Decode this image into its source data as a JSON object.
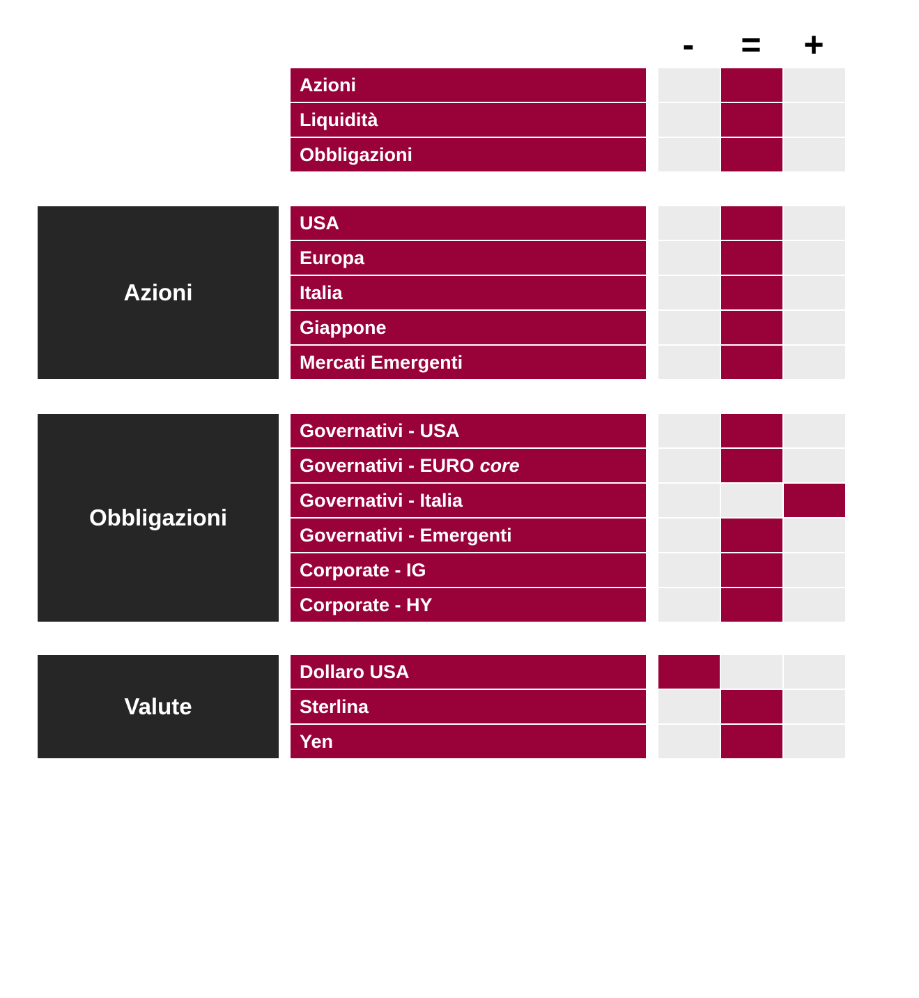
{
  "colors": {
    "accent_red": "#990238",
    "cell_gray": "#EBEBEB",
    "category_dark": "#262626",
    "symbol_black": "#000000"
  },
  "chart_data": {
    "type": "table",
    "title": "",
    "columns": [
      "-",
      "=",
      "+"
    ],
    "legend_position": "top-right",
    "groups": [
      {
        "category": "",
        "rows": [
          {
            "label": "Azioni",
            "label_italic": "",
            "view": "="
          },
          {
            "label": "Liquidità",
            "label_italic": "",
            "view": "="
          },
          {
            "label": "Obbligazioni",
            "label_italic": "",
            "view": "="
          }
        ]
      },
      {
        "category": "Azioni",
        "rows": [
          {
            "label": "USA",
            "label_italic": "",
            "view": "="
          },
          {
            "label": "Europa",
            "label_italic": "",
            "view": "="
          },
          {
            "label": "Italia",
            "label_italic": "",
            "view": "="
          },
          {
            "label": "Giappone",
            "label_italic": "",
            "view": "="
          },
          {
            "label": "Mercati Emergenti",
            "label_italic": "",
            "view": "="
          }
        ]
      },
      {
        "category": "Obbligazioni",
        "rows": [
          {
            "label": "Governativi - USA",
            "label_italic": "",
            "view": "="
          },
          {
            "label": "Governativi - EURO",
            "label_italic": "core",
            "view": "="
          },
          {
            "label": "Governativi - Italia",
            "label_italic": "",
            "view": "+"
          },
          {
            "label": "Governativi - Emergenti",
            "label_italic": "",
            "view": "="
          },
          {
            "label": "Corporate - IG",
            "label_italic": "",
            "view": "="
          },
          {
            "label": "Corporate - HY",
            "label_italic": "",
            "view": "="
          }
        ]
      },
      {
        "category": "Valute",
        "rows": [
          {
            "label": "Dollaro USA",
            "label_italic": "",
            "view": "-"
          },
          {
            "label": "Sterlina",
            "label_italic": "",
            "view": "="
          },
          {
            "label": "Yen",
            "label_italic": "",
            "view": "="
          }
        ]
      }
    ]
  }
}
